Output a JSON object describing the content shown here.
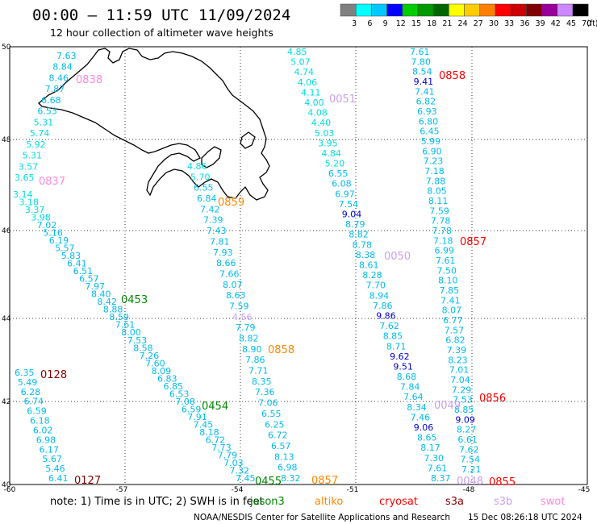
{
  "header": {
    "title": "00:00 – 11:59 UTC 11/09/2024",
    "subtitle": "12 hour collection of altimeter wave heights"
  },
  "legend": {
    "unit": "(ft)",
    "bins": [
      {
        "label": "3",
        "color": "#808080"
      },
      {
        "label": "6",
        "color": "#00ffff"
      },
      {
        "label": "9",
        "color": "#00c8ff"
      },
      {
        "label": "12",
        "color": "#0000ff"
      },
      {
        "label": "15",
        "color": "#00cc00"
      },
      {
        "label": "18",
        "color": "#009900"
      },
      {
        "label": "21",
        "color": "#006600"
      },
      {
        "label": "24",
        "color": "#ffff00"
      },
      {
        "label": "27",
        "color": "#ffcc00"
      },
      {
        "label": "30",
        "color": "#ff8000"
      },
      {
        "label": "33",
        "color": "#ff0000"
      },
      {
        "label": "36",
        "color": "#cc0000"
      },
      {
        "label": "39",
        "color": "#800000"
      },
      {
        "label": "42",
        "color": "#990099"
      },
      {
        "label": "45",
        "color": "#cc88ff"
      },
      {
        "label": "70",
        "color": "#000000"
      }
    ]
  },
  "axes": {
    "lat_ticks": [
      "50",
      "48",
      "46",
      "44",
      "42",
      "40"
    ],
    "lon_ticks": [
      "-60",
      "-57",
      "-54",
      "-51",
      "-48",
      "-45"
    ]
  },
  "track_times": [
    {
      "text": "0838",
      "color": "#ff88dd"
    },
    {
      "text": "0837",
      "color": "#ff88dd"
    },
    {
      "text": "0051",
      "color": "#c8a0f0"
    },
    {
      "text": "0858",
      "color": "#ff0000"
    },
    {
      "text": "0859",
      "color": "#ff8800"
    },
    {
      "text": "0857",
      "color": "#ff0000"
    },
    {
      "text": "0050",
      "color": "#c8a0f0"
    },
    {
      "text": "0453",
      "color": "#008800"
    },
    {
      "text": "0858",
      "color": "#ff8800"
    },
    {
      "text": "0128",
      "color": "#880000"
    },
    {
      "text": "0454",
      "color": "#008800"
    },
    {
      "text": "0049",
      "color": "#c8a0f0"
    },
    {
      "text": "0856",
      "color": "#ff0000"
    },
    {
      "text": "0127",
      "color": "#880000"
    },
    {
      "text": "0455",
      "color": "#008800"
    },
    {
      "text": "0857",
      "color": "#ff8800"
    },
    {
      "text": "0048",
      "color": "#c8a0f0"
    },
    {
      "text": "0855",
      "color": "#ff0000"
    }
  ],
  "tracks": [
    {
      "name": "track-a",
      "points": [
        {
          "t": "7.63",
          "c": "#00bbee"
        },
        {
          "t": "8.84",
          "c": "#00bbee"
        },
        {
          "t": "8.46",
          "c": "#00bbee"
        },
        {
          "t": "7.87",
          "c": "#00bbee"
        },
        {
          "t": "6.68",
          "c": "#00bbee"
        },
        {
          "t": "6.53",
          "c": "#00bbee"
        },
        {
          "t": "5.31",
          "c": "#00dddd"
        },
        {
          "t": "5.74",
          "c": "#00dddd"
        },
        {
          "t": "5.92",
          "c": "#00dddd"
        },
        {
          "t": "5.31",
          "c": "#00dddd"
        },
        {
          "t": "3.57",
          "c": "#00dddd"
        },
        {
          "t": "3.65",
          "c": "#00dddd"
        }
      ]
    },
    {
      "name": "track-b",
      "points": [
        {
          "t": "3.14",
          "c": "#00dddd"
        },
        {
          "t": "3.18",
          "c": "#00dddd"
        },
        {
          "t": "3.37",
          "c": "#00dddd"
        },
        {
          "t": "3.98",
          "c": "#00dddd"
        },
        {
          "t": "7.02",
          "c": "#00bbee"
        },
        {
          "t": "5.16",
          "c": "#00bbee"
        },
        {
          "t": "6.19",
          "c": "#00bbee"
        },
        {
          "t": "5.57",
          "c": "#00bbee"
        },
        {
          "t": "5.83",
          "c": "#00bbee"
        },
        {
          "t": "6.41",
          "c": "#00bbee"
        },
        {
          "t": "6.51",
          "c": "#00bbee"
        },
        {
          "t": "6.57",
          "c": "#00bbee"
        },
        {
          "t": "7.97",
          "c": "#00bbee"
        },
        {
          "t": "8.40",
          "c": "#00bbee"
        },
        {
          "t": "8.42",
          "c": "#00bbee"
        },
        {
          "t": "8.88",
          "c": "#00bbee"
        },
        {
          "t": "8.59",
          "c": "#00bbee"
        },
        {
          "t": "7.61",
          "c": "#00bbee"
        },
        {
          "t": "8.00",
          "c": "#00bbee"
        },
        {
          "t": "7.53",
          "c": "#00bbee"
        },
        {
          "t": "8.58",
          "c": "#00bbee"
        },
        {
          "t": "7.26",
          "c": "#00bbee"
        },
        {
          "t": "7.60",
          "c": "#00bbee"
        },
        {
          "t": "8.09",
          "c": "#00bbee"
        },
        {
          "t": "6.83",
          "c": "#00bbee"
        },
        {
          "t": "6.85",
          "c": "#00bbee"
        },
        {
          "t": "6.53",
          "c": "#00bbee"
        },
        {
          "t": "7.08",
          "c": "#00bbee"
        },
        {
          "t": "6.59",
          "c": "#00bbee"
        },
        {
          "t": "7.91",
          "c": "#00bbee"
        },
        {
          "t": "7.45",
          "c": "#00bbee"
        },
        {
          "t": "8.18",
          "c": "#00bbee"
        },
        {
          "t": "6.72",
          "c": "#00bbee"
        },
        {
          "t": "7.73",
          "c": "#00bbee"
        },
        {
          "t": "7.79",
          "c": "#00bbee"
        },
        {
          "t": "7.03",
          "c": "#00bbee"
        },
        {
          "t": "7.32",
          "c": "#00bbee"
        },
        {
          "t": "7.45",
          "c": "#00bbee"
        }
      ]
    },
    {
      "name": "track-c",
      "points": [
        {
          "t": "4.85",
          "c": "#00dddd"
        },
        {
          "t": "5.07",
          "c": "#00dddd"
        },
        {
          "t": "4.74",
          "c": "#00dddd"
        },
        {
          "t": "4.06",
          "c": "#00dddd"
        },
        {
          "t": "4.11",
          "c": "#00dddd"
        },
        {
          "t": "4.00",
          "c": "#00dddd"
        },
        {
          "t": "4.08",
          "c": "#00dddd"
        },
        {
          "t": "4.40",
          "c": "#00dddd"
        },
        {
          "t": "5.03",
          "c": "#00dddd"
        },
        {
          "t": "3.95",
          "c": "#00dddd"
        },
        {
          "t": "4.84",
          "c": "#00dddd"
        },
        {
          "t": "5.20",
          "c": "#00dddd"
        },
        {
          "t": "6.55",
          "c": "#00bbee"
        },
        {
          "t": "6.08",
          "c": "#00bbee"
        },
        {
          "t": "6.97",
          "c": "#00bbee"
        },
        {
          "t": "7.54",
          "c": "#00bbee"
        },
        {
          "t": "9.04",
          "c": "#0000cc"
        },
        {
          "t": "8.79",
          "c": "#00bbee"
        },
        {
          "t": "8.82",
          "c": "#00bbee"
        },
        {
          "t": "8.78",
          "c": "#00bbee"
        },
        {
          "t": "8.38",
          "c": "#00bbee"
        },
        {
          "t": "8.61",
          "c": "#00bbee"
        },
        {
          "t": "8.28",
          "c": "#00bbee"
        },
        {
          "t": "7.70",
          "c": "#00bbee"
        },
        {
          "t": "8.94",
          "c": "#00bbee"
        },
        {
          "t": "7.86",
          "c": "#00bbee"
        },
        {
          "t": "9.86",
          "c": "#0000cc"
        },
        {
          "t": "7.62",
          "c": "#00bbee"
        },
        {
          "t": "8.85",
          "c": "#00bbee"
        },
        {
          "t": "8.71",
          "c": "#00bbee"
        },
        {
          "t": "9.62",
          "c": "#0000cc"
        },
        {
          "t": "9.51",
          "c": "#0000cc"
        },
        {
          "t": "8.68",
          "c": "#00bbee"
        },
        {
          "t": "7.84",
          "c": "#00bbee"
        },
        {
          "t": "7.64",
          "c": "#00bbee"
        },
        {
          "t": "8.34",
          "c": "#00bbee"
        },
        {
          "t": "7.46",
          "c": "#00bbee"
        },
        {
          "t": "9.06",
          "c": "#0000cc"
        },
        {
          "t": "8.65",
          "c": "#00bbee"
        },
        {
          "t": "8.17",
          "c": "#00bbee"
        },
        {
          "t": "7.30",
          "c": "#00bbee"
        },
        {
          "t": "7.61",
          "c": "#00bbee"
        },
        {
          "t": "8.37",
          "c": "#00bbee"
        }
      ]
    },
    {
      "name": "track-d",
      "points": [
        {
          "t": "7.61",
          "c": "#00bbee"
        },
        {
          "t": "7.80",
          "c": "#00bbee"
        },
        {
          "t": "8.54",
          "c": "#00bbee"
        },
        {
          "t": "9.41",
          "c": "#0000cc"
        },
        {
          "t": "7.41",
          "c": "#00bbee"
        },
        {
          "t": "6.82",
          "c": "#00bbee"
        },
        {
          "t": "6.93",
          "c": "#00bbee"
        },
        {
          "t": "6.80",
          "c": "#00bbee"
        },
        {
          "t": "6.45",
          "c": "#00bbee"
        },
        {
          "t": "5.99",
          "c": "#00bbee"
        },
        {
          "t": "6.90",
          "c": "#00bbee"
        },
        {
          "t": "7.23",
          "c": "#00bbee"
        },
        {
          "t": "7.18",
          "c": "#00bbee"
        },
        {
          "t": "7.88",
          "c": "#00bbee"
        },
        {
          "t": "8.05",
          "c": "#00bbee"
        },
        {
          "t": "8.11",
          "c": "#00bbee"
        },
        {
          "t": "7.59",
          "c": "#00bbee"
        },
        {
          "t": "7.78",
          "c": "#00bbee"
        },
        {
          "t": "7.78",
          "c": "#00bbee"
        },
        {
          "t": "7.18",
          "c": "#00bbee"
        },
        {
          "t": "6.99",
          "c": "#00bbee"
        },
        {
          "t": "7.61",
          "c": "#00bbee"
        },
        {
          "t": "7.50",
          "c": "#00bbee"
        },
        {
          "t": "8.10",
          "c": "#00bbee"
        },
        {
          "t": "7.85",
          "c": "#00bbee"
        },
        {
          "t": "7.41",
          "c": "#00bbee"
        },
        {
          "t": "8.07",
          "c": "#00bbee"
        },
        {
          "t": "6.77",
          "c": "#00bbee"
        },
        {
          "t": "7.57",
          "c": "#00bbee"
        },
        {
          "t": "6.82",
          "c": "#00bbee"
        },
        {
          "t": "7.39",
          "c": "#00bbee"
        },
        {
          "t": "8.23",
          "c": "#00bbee"
        },
        {
          "t": "7.01",
          "c": "#00bbee"
        },
        {
          "t": "7.04",
          "c": "#00bbee"
        },
        {
          "t": "7.29",
          "c": "#00bbee"
        },
        {
          "t": "7.53",
          "c": "#00bbee"
        },
        {
          "t": "8.85",
          "c": "#00bbee"
        },
        {
          "t": "9.09",
          "c": "#0000cc"
        },
        {
          "t": "8.27",
          "c": "#00bbee"
        },
        {
          "t": "6.61",
          "c": "#00bbee"
        },
        {
          "t": "7.62",
          "c": "#00bbee"
        },
        {
          "t": "7.54",
          "c": "#00bbee"
        },
        {
          "t": "7.21",
          "c": "#00bbee"
        }
      ]
    },
    {
      "name": "track-e",
      "points": [
        {
          "t": "4.86",
          "c": "#00dddd"
        },
        {
          "t": "5.70",
          "c": "#00dddd"
        },
        {
          "t": "6.55",
          "c": "#00bbee"
        },
        {
          "t": "6.84",
          "c": "#00bbee"
        },
        {
          "t": "7.42",
          "c": "#00bbee"
        },
        {
          "t": "7.39",
          "c": "#00bbee"
        },
        {
          "t": "7.43",
          "c": "#00bbee"
        },
        {
          "t": "7.81",
          "c": "#00bbee"
        },
        {
          "t": "7.93",
          "c": "#00bbee"
        },
        {
          "t": "8.66",
          "c": "#00bbee"
        },
        {
          "t": "7.66",
          "c": "#00bbee"
        },
        {
          "t": "8.07",
          "c": "#00bbee"
        },
        {
          "t": "8.63",
          "c": "#00bbee"
        },
        {
          "t": "7.59",
          "c": "#00bbee"
        },
        {
          "t": "4.56",
          "c": "#c8a0f0"
        },
        {
          "t": "7.79",
          "c": "#00bbee"
        },
        {
          "t": "8.82",
          "c": "#00bbee"
        },
        {
          "t": "8.90",
          "c": "#00bbee"
        },
        {
          "t": "7.86",
          "c": "#00bbee"
        },
        {
          "t": "7.71",
          "c": "#00bbee"
        },
        {
          "t": "8.35",
          "c": "#00bbee"
        },
        {
          "t": "7.36",
          "c": "#00bbee"
        },
        {
          "t": "7.06",
          "c": "#00bbee"
        },
        {
          "t": "6.55",
          "c": "#00bbee"
        },
        {
          "t": "6.25",
          "c": "#00bbee"
        },
        {
          "t": "6.72",
          "c": "#00bbee"
        },
        {
          "t": "6.57",
          "c": "#00bbee"
        },
        {
          "t": "8.13",
          "c": "#00bbee"
        },
        {
          "t": "6.98",
          "c": "#00bbee"
        },
        {
          "t": "8.32",
          "c": "#00bbee"
        }
      ]
    },
    {
      "name": "track-f",
      "points": [
        {
          "t": "6.35",
          "c": "#00bbee"
        },
        {
          "t": "5.49",
          "c": "#00bbee"
        },
        {
          "t": "6.28",
          "c": "#00bbee"
        },
        {
          "t": "6.74",
          "c": "#00bbee"
        },
        {
          "t": "6.59",
          "c": "#00bbee"
        },
        {
          "t": "6.18",
          "c": "#00bbee"
        },
        {
          "t": "6.02",
          "c": "#00bbee"
        },
        {
          "t": "6.98",
          "c": "#00bbee"
        },
        {
          "t": "6.17",
          "c": "#00bbee"
        },
        {
          "t": "5.67",
          "c": "#00bbee"
        },
        {
          "t": "5.46",
          "c": "#00bbee"
        },
        {
          "t": "6.41",
          "c": "#00bbee"
        }
      ]
    }
  ],
  "footer": {
    "note": "note:  1) Time is in UTC;  2) SWH is in feet",
    "satellites": [
      {
        "name": "jason3",
        "color": "#008800"
      },
      {
        "name": "altiko",
        "color": "#ff8800"
      },
      {
        "name": "cryosat",
        "color": "#ff0000"
      },
      {
        "name": "s3a",
        "color": "#880000"
      },
      {
        "name": "s3b",
        "color": "#c8a0f0"
      },
      {
        "name": "swot",
        "color": "#ff88dd"
      }
    ],
    "credit": "NOAA/NESDIS Center for Satellite Applications and Research",
    "timestamp": "15 Dec 08:26:18 UTC 2024"
  }
}
